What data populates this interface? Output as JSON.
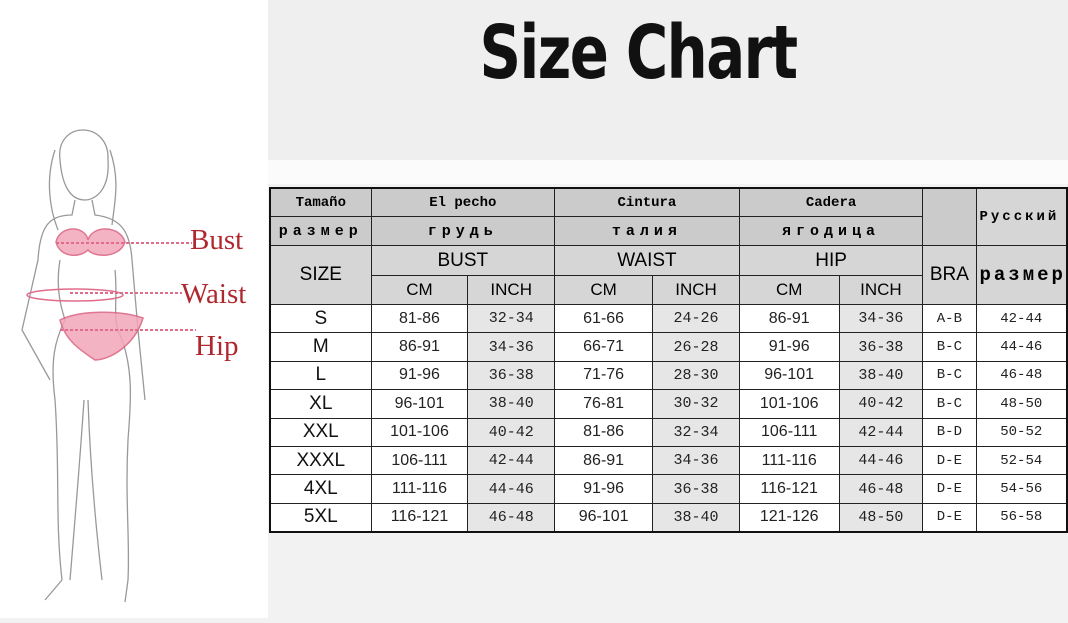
{
  "title": "Size Chart",
  "figure_labels": {
    "bust": "Bust",
    "waist": "Waist",
    "hip": "Hip"
  },
  "header": {
    "row1": {
      "size": "Tamaño",
      "bust": "El pecho",
      "waist": "Cintura",
      "hip": "Cadera",
      "ru": "Русский"
    },
    "row2": {
      "size": "размер",
      "bust": "грудь",
      "waist": "талия",
      "hip": "ягодица"
    },
    "row3": {
      "size": "SIZE",
      "bust": "BUST",
      "waist": "WAIST",
      "hip": "HIP",
      "bra": "BRA",
      "ru": "размер"
    },
    "row4": {
      "cm": "CM",
      "inch": "INCH"
    }
  },
  "colors": {
    "label_red": "#b0282f",
    "header_grey": "#cbcbcb",
    "inch_shade": "#e6e6e6"
  },
  "rows": [
    [
      "S",
      "81-86",
      "32-34",
      "61-66",
      "24-26",
      "86-91",
      "34-36",
      "A-B",
      "42-44"
    ],
    [
      "M",
      "86-91",
      "34-36",
      "66-71",
      "26-28",
      "91-96",
      "36-38",
      "B-C",
      "44-46"
    ],
    [
      "L",
      "91-96",
      "36-38",
      "71-76",
      "28-30",
      "96-101",
      "38-40",
      "B-C",
      "46-48"
    ],
    [
      "XL",
      "96-101",
      "38-40",
      "76-81",
      "30-32",
      "101-106",
      "40-42",
      "B-C",
      "48-50"
    ],
    [
      "XXL",
      "101-106",
      "40-42",
      "81-86",
      "32-34",
      "106-111",
      "42-44",
      "B-D",
      "50-52"
    ],
    [
      "XXXL",
      "106-111",
      "42-44",
      "86-91",
      "34-36",
      "111-116",
      "44-46",
      "D-E",
      "52-54"
    ],
    [
      "4XL",
      "111-116",
      "44-46",
      "91-96",
      "36-38",
      "116-121",
      "46-48",
      "D-E",
      "54-56"
    ],
    [
      "5XL",
      "116-121",
      "46-48",
      "96-101",
      "38-40",
      "121-126",
      "48-50",
      "D-E",
      "56-58"
    ]
  ]
}
